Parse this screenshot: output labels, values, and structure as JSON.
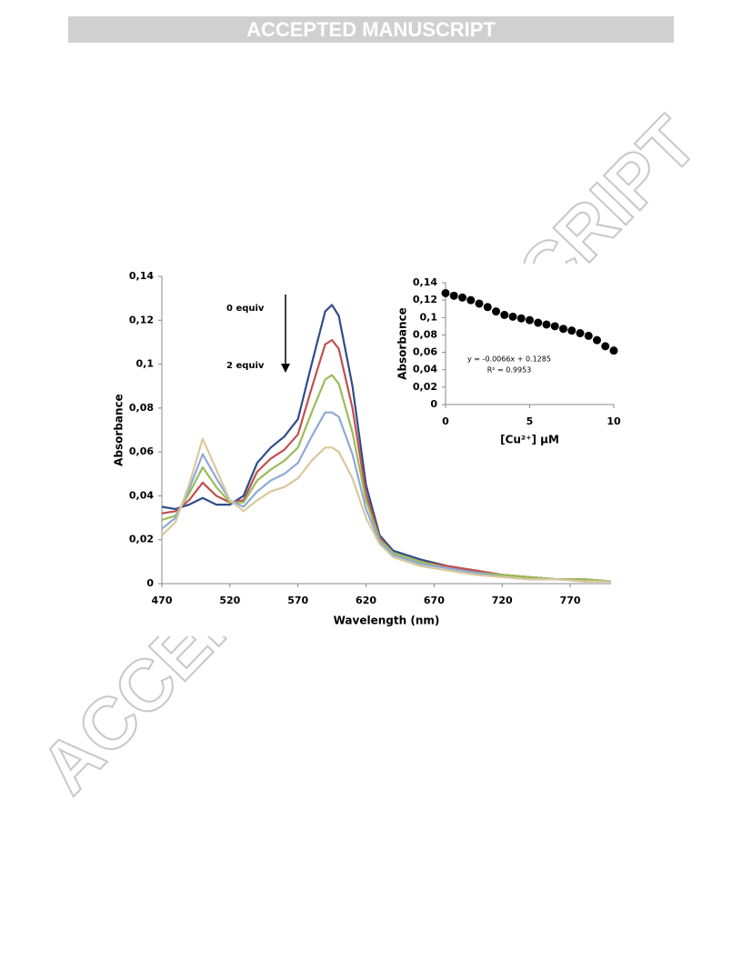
{
  "header": {
    "title": "ACCEPTED MANUSCRIPT"
  },
  "watermark": "ACCEPTED MANUSCRIPT",
  "chart_data": [
    {
      "type": "line",
      "xlabel": "Wavelength (nm)",
      "ylabel": "Absorbance",
      "annotations": [
        "0 equiv",
        "2 equiv"
      ],
      "x": [
        470,
        480,
        490,
        500,
        510,
        520,
        530,
        540,
        550,
        560,
        570,
        580,
        590,
        595,
        600,
        610,
        620,
        630,
        640,
        660,
        680,
        700,
        720,
        740,
        760,
        780,
        800
      ],
      "xlim": [
        470,
        800
      ],
      "xticks": [
        470,
        520,
        570,
        620,
        670,
        720,
        770
      ],
      "ylim": [
        0,
        0.14
      ],
      "yticks": [
        0,
        {
          "value": 0.02,
          "label": "0,02"
        },
        {
          "value": 0.04,
          "label": "0,04"
        },
        {
          "value": 0.06,
          "label": "0,06"
        },
        {
          "value": 0.08,
          "label": "0,08"
        },
        {
          "value": 0.1,
          "label": "0,1"
        },
        {
          "value": 0.12,
          "label": "0,12"
        },
        {
          "value": 0.14,
          "label": "0,14"
        }
      ],
      "series": [
        {
          "color": "#2f4b8a",
          "values": [
            0.035,
            0.034,
            0.036,
            0.039,
            0.036,
            0.036,
            0.04,
            0.055,
            0.062,
            0.067,
            0.075,
            0.1,
            0.124,
            0.127,
            0.122,
            0.09,
            0.045,
            0.022,
            0.015,
            0.011,
            0.008,
            0.006,
            0.004,
            0.003,
            0.002,
            0.002,
            0.001
          ]
        },
        {
          "color": "#c0504d",
          "values": [
            0.032,
            0.033,
            0.038,
            0.046,
            0.04,
            0.037,
            0.038,
            0.051,
            0.057,
            0.061,
            0.068,
            0.089,
            0.109,
            0.111,
            0.107,
            0.08,
            0.041,
            0.021,
            0.014,
            0.01,
            0.008,
            0.006,
            0.004,
            0.003,
            0.002,
            0.002,
            0.001
          ]
        },
        {
          "color": "#9bbb59",
          "values": [
            0.029,
            0.031,
            0.041,
            0.053,
            0.044,
            0.037,
            0.037,
            0.047,
            0.052,
            0.056,
            0.062,
            0.078,
            0.093,
            0.095,
            0.091,
            0.069,
            0.038,
            0.02,
            0.014,
            0.01,
            0.007,
            0.005,
            0.004,
            0.003,
            0.002,
            0.002,
            0.001
          ]
        },
        {
          "color": "#8ea9d8",
          "values": [
            0.025,
            0.03,
            0.043,
            0.059,
            0.048,
            0.038,
            0.035,
            0.042,
            0.047,
            0.05,
            0.055,
            0.067,
            0.078,
            0.078,
            0.076,
            0.059,
            0.034,
            0.019,
            0.013,
            0.009,
            0.007,
            0.005,
            0.003,
            0.002,
            0.002,
            0.001,
            0.001
          ]
        },
        {
          "color": "#d9c89a",
          "values": [
            0.022,
            0.028,
            0.045,
            0.066,
            0.052,
            0.038,
            0.033,
            0.038,
            0.042,
            0.044,
            0.048,
            0.056,
            0.062,
            0.062,
            0.06,
            0.048,
            0.03,
            0.018,
            0.012,
            0.008,
            0.006,
            0.004,
            0.003,
            0.002,
            0.002,
            0.001,
            0.001
          ]
        }
      ]
    },
    {
      "type": "scatter",
      "xlabel": "[Cu²⁺] µM",
      "ylabel": "Absorbance",
      "annotations": [
        "y = -0.0066x + 0.1285",
        "R² = 0.9953"
      ],
      "color": "#000000",
      "x": [
        0,
        0.5,
        1,
        1.5,
        2,
        2.5,
        3,
        3.5,
        4,
        4.5,
        5,
        5.5,
        6,
        6.5,
        7,
        7.5,
        8,
        8.5,
        9,
        9.5,
        10
      ],
      "values": [
        0.128,
        0.125,
        0.123,
        0.12,
        0.116,
        0.112,
        0.107,
        0.103,
        0.101,
        0.099,
        0.097,
        0.094,
        0.092,
        0.09,
        0.087,
        0.085,
        0.082,
        0.079,
        0.074,
        0.067,
        0.062
      ],
      "xlim": [
        0,
        10
      ],
      "xticks": [
        0,
        5,
        10
      ],
      "ylim": [
        0,
        0.14
      ],
      "yticks": [
        0,
        {
          "value": 0.02,
          "label": "0,02"
        },
        {
          "value": 0.04,
          "label": "0,04"
        },
        {
          "value": 0.06,
          "label": "0,06"
        },
        {
          "value": 0.08,
          "label": "0,08"
        },
        {
          "value": 0.1,
          "label": "0,1"
        },
        {
          "value": 0.12,
          "label": "0,12"
        },
        {
          "value": 0.14,
          "label": "0,14"
        }
      ]
    }
  ]
}
